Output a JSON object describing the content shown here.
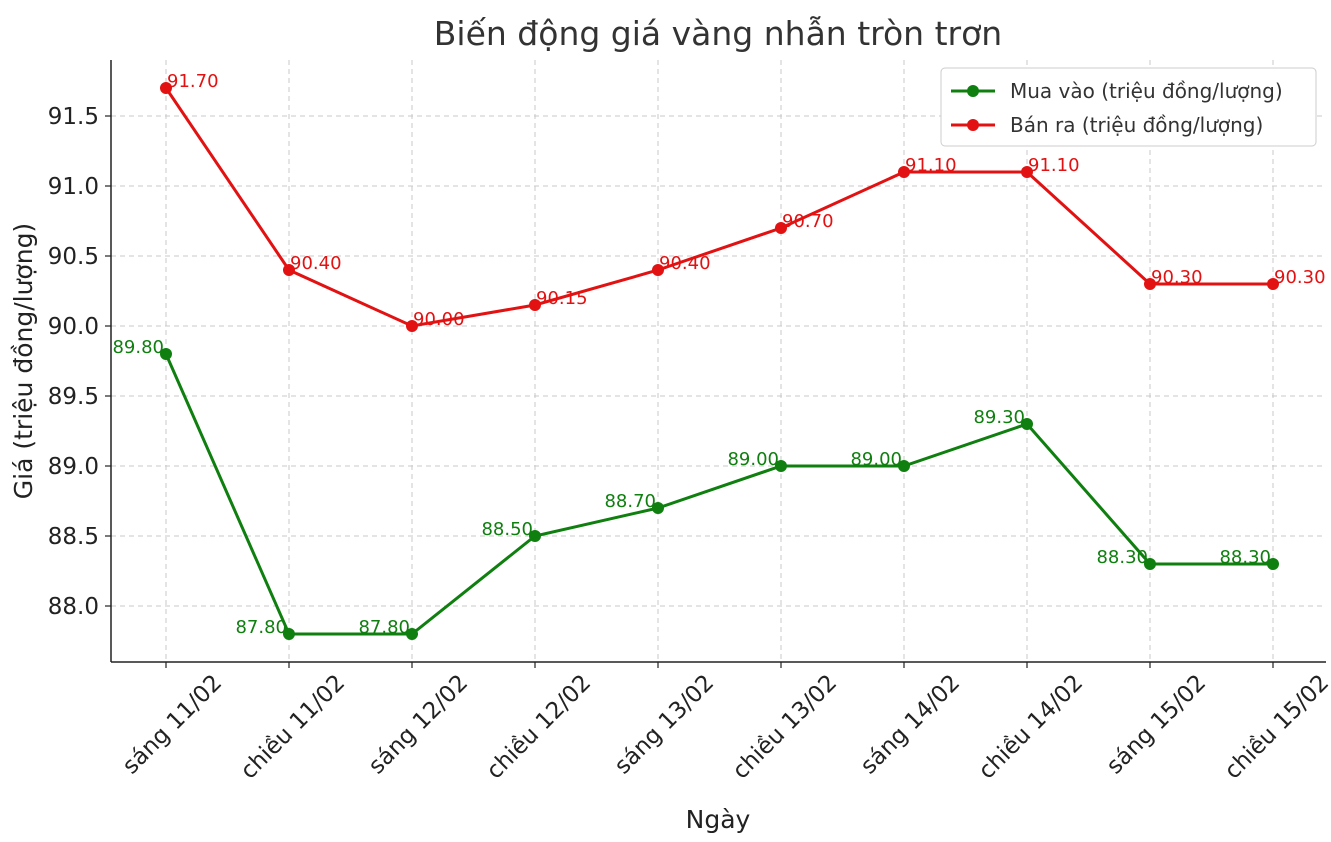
{
  "chart_data": {
    "type": "line",
    "title": "Biến động giá vàng nhẫn tròn trơn",
    "xlabel": "Ngày",
    "ylabel": "Giá (triệu đồng/lượng)",
    "categories": [
      "sáng 11/02",
      "chiều 11/02",
      "sáng 12/02",
      "chiều 12/02",
      "sáng 13/02",
      "chiều 13/02",
      "sáng 14/02",
      "chiều 14/02",
      "sáng 15/02",
      "chiều 15/02"
    ],
    "yticks": [
      "88.0",
      "88.5",
      "89.0",
      "89.5",
      "90.0",
      "90.5",
      "91.0",
      "91.5"
    ],
    "ylim": [
      87.6,
      91.9
    ],
    "grid": true,
    "legend_position": "top-right",
    "series": [
      {
        "name": "Mua vào (triệu đồng/lượng)",
        "color": "#0f7f0f",
        "values": [
          89.8,
          87.8,
          87.8,
          88.5,
          88.7,
          89.0,
          89.0,
          89.3,
          88.3,
          88.3
        ],
        "labels": [
          "89.80",
          "87.80",
          "87.80",
          "88.50",
          "88.70",
          "89.00",
          "89.00",
          "89.30",
          "88.30",
          "88.30"
        ]
      },
      {
        "name": "Bán ra (triệu đồng/lượng)",
        "color": "#e31212",
        "values": [
          91.7,
          90.4,
          90.0,
          90.15,
          90.4,
          90.7,
          91.1,
          91.1,
          90.3,
          90.3
        ],
        "labels": [
          "91.70",
          "90.40",
          "90.00",
          "90.15",
          "90.40",
          "90.70",
          "91.10",
          "91.10",
          "90.30",
          "90.30"
        ]
      }
    ]
  }
}
